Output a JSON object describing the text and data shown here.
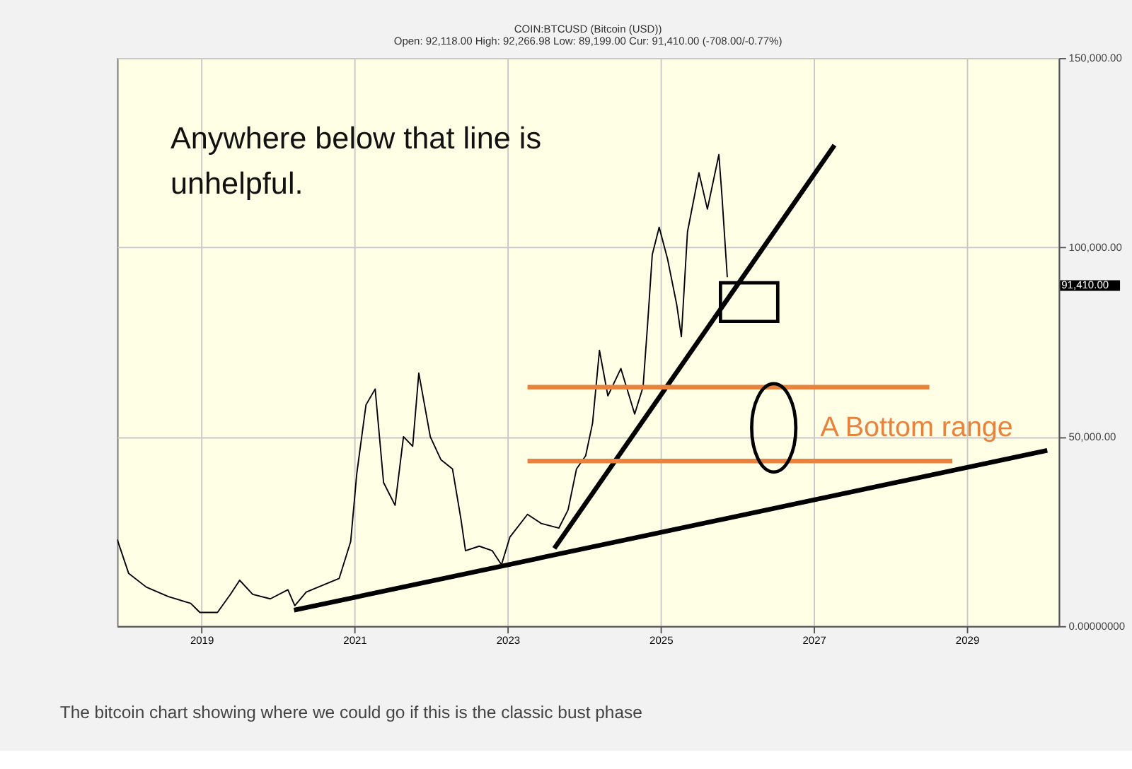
{
  "chart_data": {
    "type": "line",
    "title": "COIN:BTCUSD (Bitcoin (USD))",
    "subtitle": "Open: 92,118.00 High: 92,266.98 Low: 89,199.00 Cur: 91,410.00 (-708.00/-0.77%)",
    "xlim": [
      2017.9,
      2030.2
    ],
    "xticks": [
      2019,
      2021,
      2023,
      2025,
      2027,
      2029
    ],
    "ylim": [
      0,
      150000
    ],
    "yticks": [
      {
        "value": 0,
        "label": "0.00000000"
      },
      {
        "value": 50000,
        "label": "50,000.00"
      },
      {
        "value": 100000,
        "label": "100,000.00"
      },
      {
        "value": 150000,
        "label": "150,000.00"
      }
    ],
    "grid": true,
    "series": [
      {
        "color": "#000000",
        "x": [
          2017.9,
          2018.05,
          2018.28,
          2018.57,
          2018.86,
          2018.98,
          2019.21,
          2019.38,
          2019.5,
          2019.67,
          2019.9,
          2020.13,
          2020.22,
          2020.37,
          2020.66,
          2020.8,
          2020.95,
          2021.03,
          2021.15,
          2021.27,
          2021.38,
          2021.53,
          2021.64,
          2021.76,
          2021.84,
          2021.99,
          2022.13,
          2022.28,
          2022.39,
          2022.45,
          2022.63,
          2022.8,
          2022.92,
          2023.03,
          2023.26,
          2023.44,
          2023.67,
          2023.79,
          2023.9,
          2024.02,
          2024.11,
          2024.2,
          2024.31,
          2024.48,
          2024.66,
          2024.77,
          2024.83,
          2024.89,
          2024.98,
          2025.09,
          2025.21,
          2025.27,
          2025.35,
          2025.5,
          2025.61,
          2025.76,
          2025.8,
          2025.87
        ],
        "values": [
          22900,
          13900,
          10300,
          7800,
          6000,
          3600,
          3600,
          8400,
          12100,
          8400,
          7200,
          9600,
          5400,
          9000,
          11400,
          12600,
          22300,
          40300,
          58400,
          62600,
          37900,
          31900,
          50000,
          47500,
          66800,
          50000,
          43900,
          41500,
          28300,
          19900,
          21100,
          19900,
          16200,
          23500,
          29500,
          27100,
          25900,
          30700,
          41500,
          45000,
          53600,
          72800,
          60800,
          68000,
          56000,
          63200,
          80000,
          98100,
          105300,
          96900,
          84800,
          76400,
          104100,
          119700,
          110100,
          124500,
          113700,
          92100
        ]
      },
      {
        "color": "#000000",
        "x": [
          2020.21,
          2030.05
        ],
        "values": [
          4200,
          46400
        ]
      },
      {
        "color": "#000000",
        "x": [
          2023.61,
          2027.27
        ],
        "values": [
          20500,
          127000
        ]
      },
      {
        "color": "#e8823f",
        "x": [
          2023.26,
          2028.51
        ],
        "values": [
          63100,
          63100
        ]
      },
      {
        "color": "#e8823f",
        "x": [
          2023.26,
          2028.81
        ],
        "values": [
          43600,
          43600
        ]
      }
    ],
    "annotations": [
      "Anywhere below that line is\nunhelpful.",
      "A Bottom range",
      "91,410.00",
      "The bitcoin chart showing where we could go if this is the classic bust phase"
    ]
  }
}
